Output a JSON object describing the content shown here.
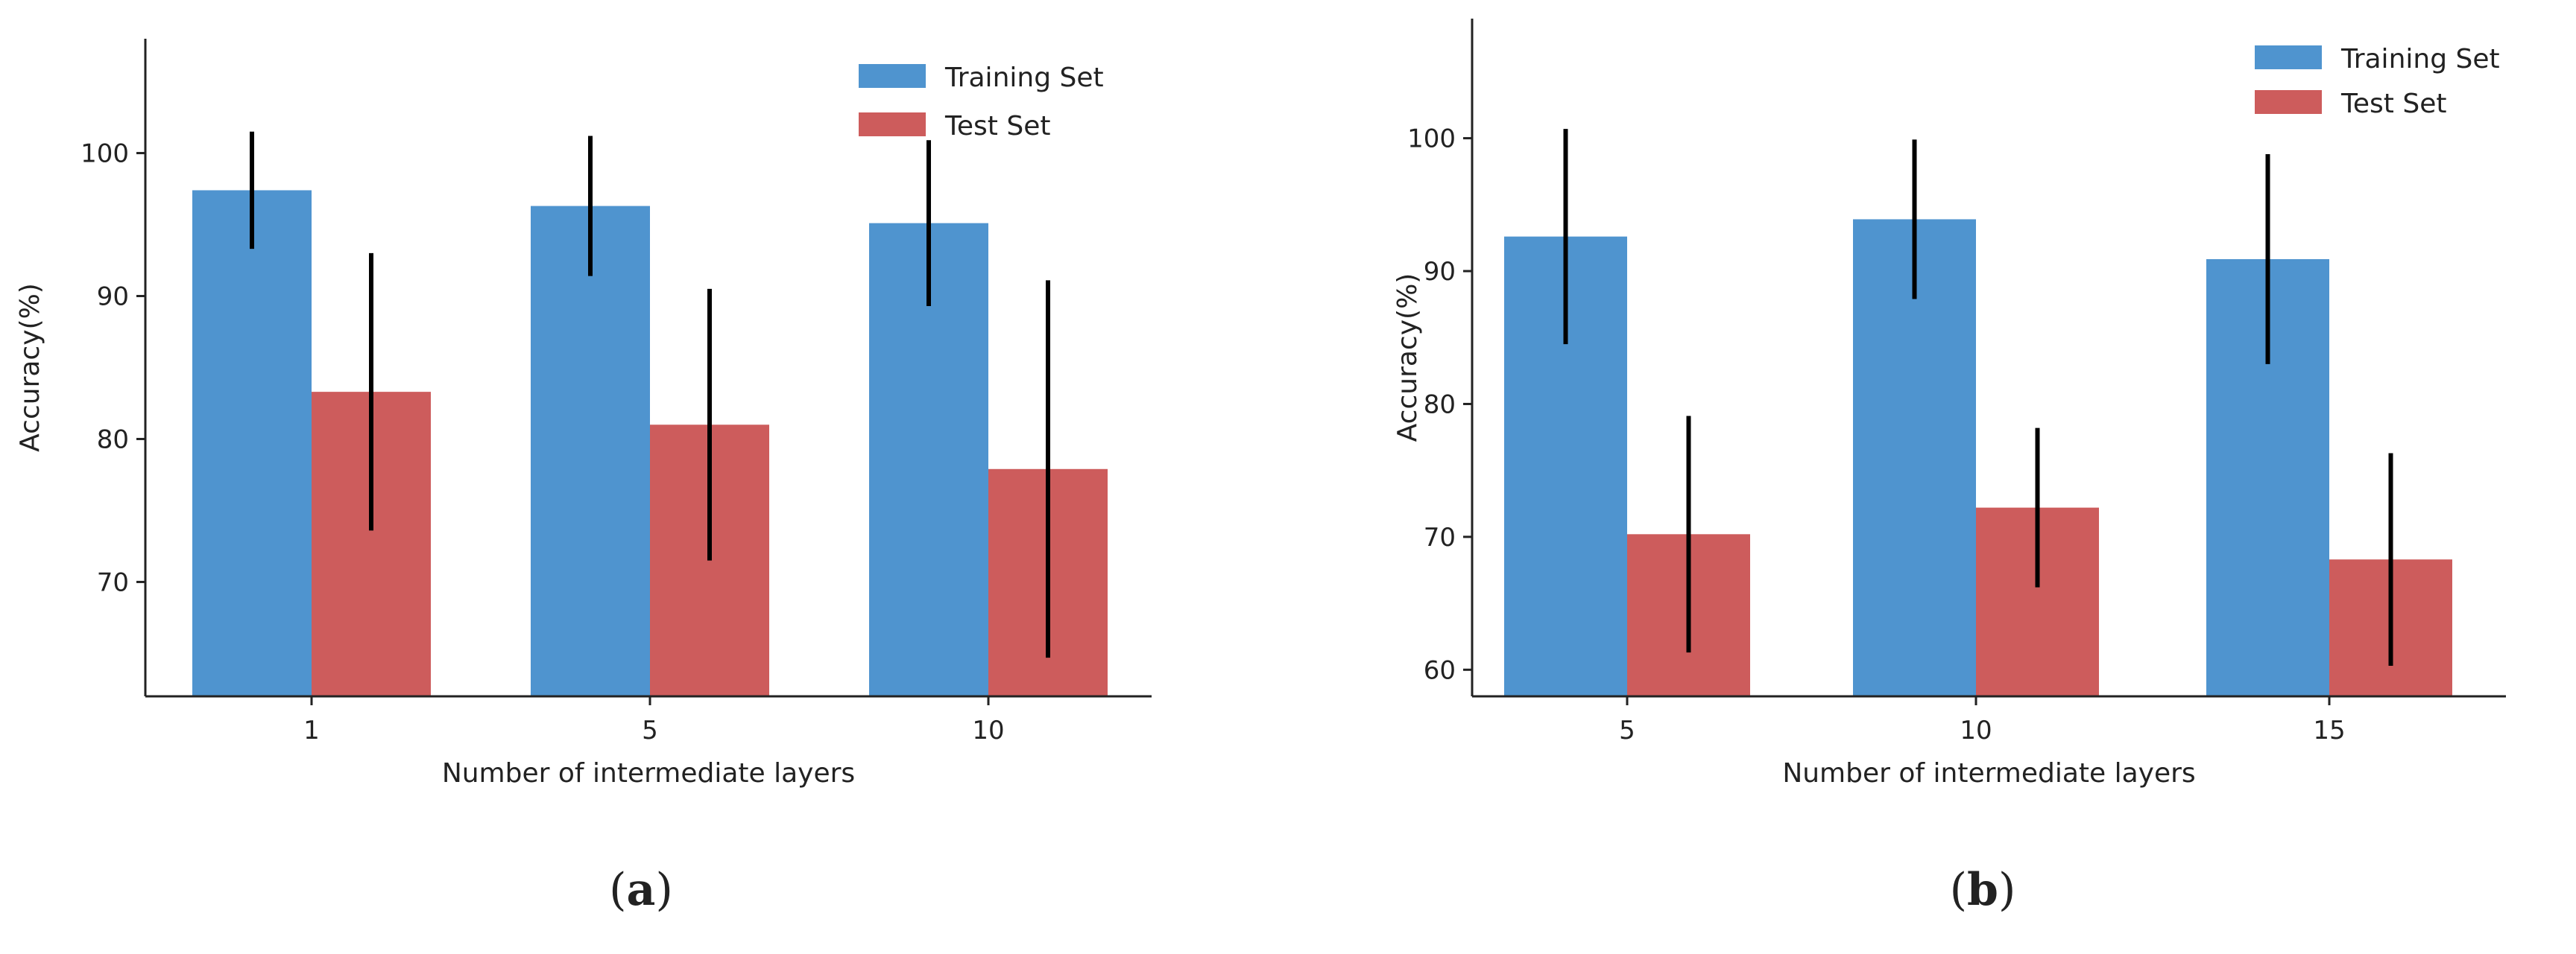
{
  "chart_data": [
    {
      "type": "bar",
      "panel": "(a)",
      "caption": {
        "open": "(",
        "letter": "a",
        "close": ")"
      },
      "categories": [
        "1",
        "5",
        "10"
      ],
      "series": [
        {
          "name": "Training Set",
          "values": [
            97.4,
            96.3,
            95.1
          ],
          "errors": [
            4.1,
            4.9,
            5.8
          ]
        },
        {
          "name": "Test Set",
          "values": [
            83.3,
            81.0,
            77.9
          ],
          "errors": [
            9.7,
            9.5,
            13.2
          ]
        }
      ],
      "xlabel": "Number of intermediate layers",
      "ylabel": "Accuracy(%)",
      "ylim": [
        62,
        108
      ],
      "yticks": [
        70,
        80,
        90,
        100
      ],
      "grid": false,
      "legend": "top-right",
      "colors": {
        "Training Set": "#4f94cf",
        "Test Set": "#cd5c5c",
        "error_bar": "#000000"
      }
    },
    {
      "type": "bar",
      "panel": "(b)",
      "caption": {
        "open": "(",
        "letter": "b",
        "close": ")"
      },
      "categories": [
        "5",
        "10",
        "15"
      ],
      "series": [
        {
          "name": "Training Set",
          "values": [
            92.6,
            93.9,
            90.9
          ],
          "errors": [
            8.1,
            6.0,
            7.9
          ]
        },
        {
          "name": "Test Set",
          "values": [
            70.2,
            72.2,
            68.3
          ],
          "errors": [
            8.9,
            6.0,
            8.0
          ]
        }
      ],
      "xlabel": "Number of intermediate layers",
      "ylabel": "Accuracy(%)",
      "ylim": [
        58,
        109
      ],
      "yticks": [
        60,
        70,
        80,
        90,
        100
      ],
      "grid": false,
      "legend": "top-right",
      "colors": {
        "Training Set": "#4f94cf",
        "Test Set": "#cd5c5c",
        "error_bar": "#000000"
      }
    }
  ]
}
